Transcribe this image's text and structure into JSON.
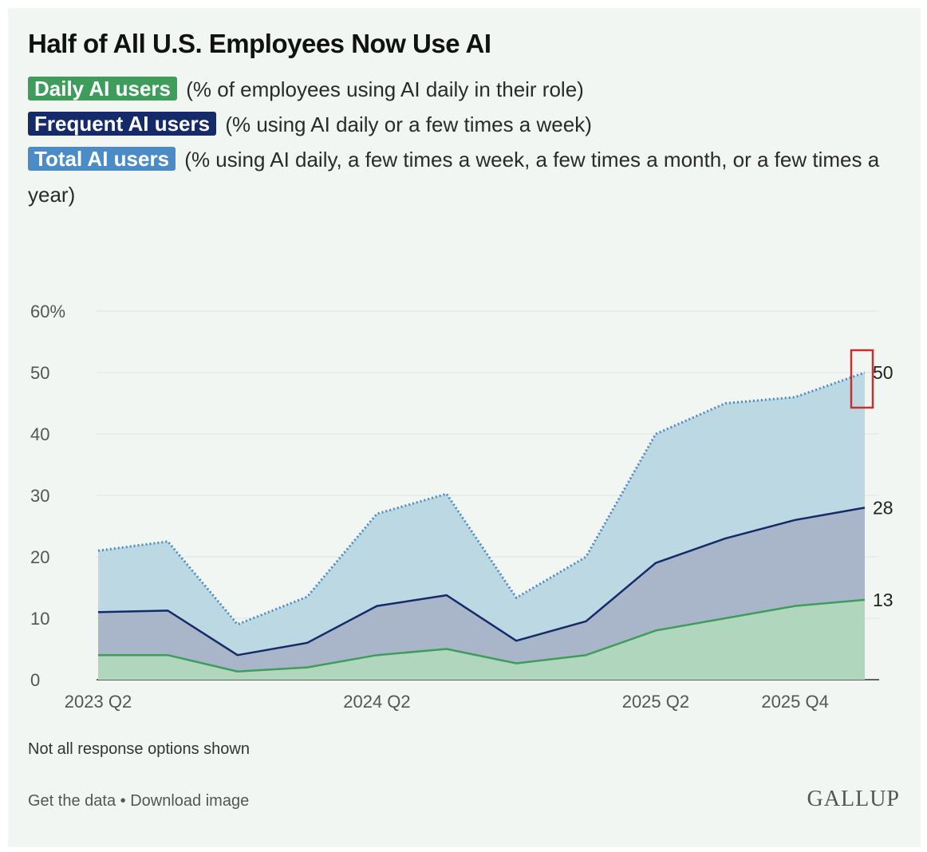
{
  "title": "Half of All U.S. Employees Now Use AI",
  "legend": [
    {
      "key": "daily",
      "label": "Daily AI users",
      "desc": "(% of employees using AI daily in their role)",
      "color": "#3f9d5c"
    },
    {
      "key": "frequent",
      "label": "Frequent AI users",
      "desc": "(% using AI daily or a few times a week)",
      "color": "#152a68"
    },
    {
      "key": "total",
      "label": "Total AI users",
      "desc": "(% using AI daily, a few times a week, a few times a month, or a few times a year)",
      "color": "#4c8cc6"
    }
  ],
  "chart_data": {
    "type": "area",
    "title": "Half of All U.S. Employees Now Use AI",
    "x": [
      0,
      1,
      2,
      3,
      4,
      5,
      6,
      7,
      8,
      9,
      10,
      11
    ],
    "x_tick_values": [
      0,
      4,
      8,
      10
    ],
    "x_tick_labels": [
      "2023 Q2",
      "2024 Q2",
      "2025 Q2",
      "2025 Q4"
    ],
    "y_ticks": [
      0,
      10,
      20,
      30,
      40,
      50,
      60
    ],
    "y_tick_labels": [
      "0",
      "10",
      "20",
      "30",
      "40",
      "50",
      "60%"
    ],
    "ylim": [
      0,
      60
    ],
    "xlim": [
      0,
      11
    ],
    "series": [
      {
        "name": "Total AI users",
        "values": [
          21,
          null,
          null,
          null,
          27,
          null,
          null,
          null,
          40,
          45,
          46,
          50
        ],
        "color": "#4c8cc6",
        "fill": "#bcd9e3",
        "style": "dotted",
        "end_label": "50"
      },
      {
        "name": "Frequent AI users",
        "values": [
          11,
          null,
          null,
          null,
          12,
          null,
          null,
          null,
          19,
          23,
          26,
          28
        ],
        "color": "#152a68",
        "fill": "#a9b6c9",
        "style": "solid",
        "end_label": "28"
      },
      {
        "name": "Daily AI users",
        "values": [
          4,
          null,
          null,
          null,
          4,
          null,
          null,
          null,
          8,
          10,
          12,
          13
        ],
        "color": "#3f9d5c",
        "fill": "#b1d6be",
        "style": "solid",
        "end_label": "13"
      }
    ],
    "highlight": {
      "series": "Total AI users",
      "x": 11,
      "color": "#c9302c"
    }
  },
  "footnote": "Not all response options shown",
  "links": {
    "get_data": "Get the data",
    "separator": "•",
    "download": "Download image"
  },
  "brand": "GALLUP"
}
